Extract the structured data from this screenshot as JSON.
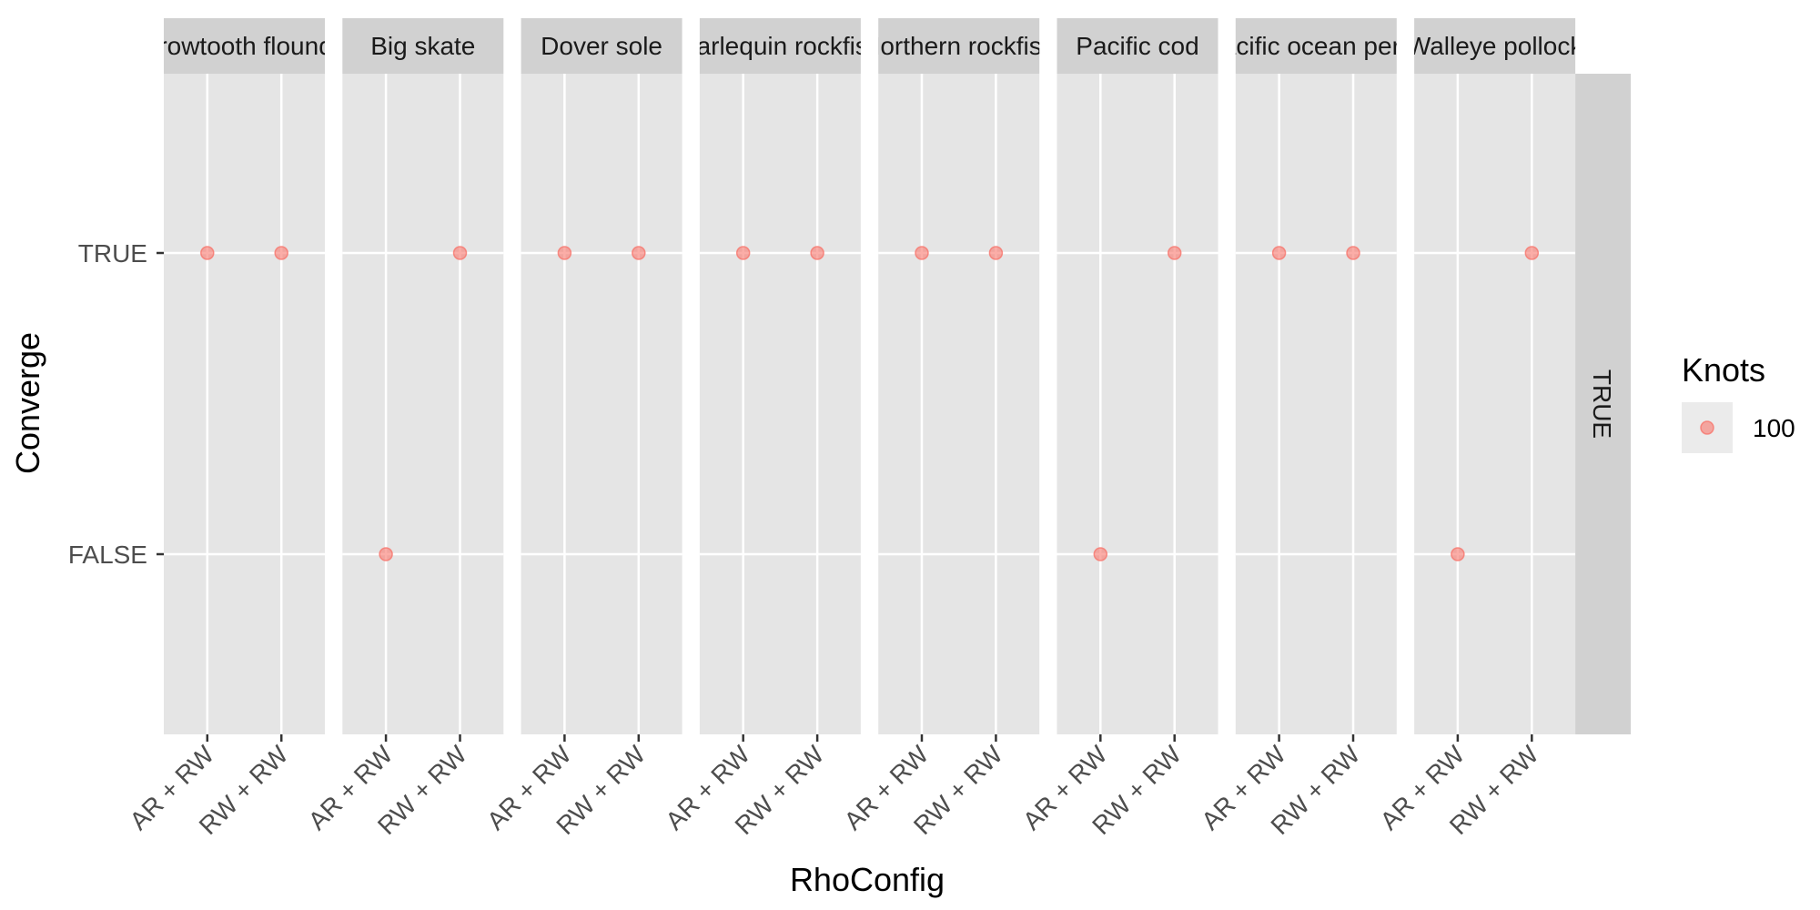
{
  "chart_data": {
    "type": "scatter",
    "xlabel": "RhoConfig",
    "ylabel": "Converge",
    "x_categories": [
      "AR + RW",
      "RW + RW"
    ],
    "y_categories": [
      "FALSE",
      "TRUE"
    ],
    "row_facet_label": "TRUE",
    "facets": [
      {
        "label": "Arrowtooth flounder",
        "points": [
          {
            "x": "AR + RW",
            "y": "TRUE"
          },
          {
            "x": "RW + RW",
            "y": "TRUE"
          }
        ]
      },
      {
        "label": "Big skate",
        "points": [
          {
            "x": "AR + RW",
            "y": "FALSE"
          },
          {
            "x": "RW + RW",
            "y": "TRUE"
          }
        ]
      },
      {
        "label": "Dover sole",
        "points": [
          {
            "x": "AR + RW",
            "y": "TRUE"
          },
          {
            "x": "RW + RW",
            "y": "TRUE"
          }
        ]
      },
      {
        "label": "Harlequin rockfish",
        "points": [
          {
            "x": "AR + RW",
            "y": "TRUE"
          },
          {
            "x": "RW + RW",
            "y": "TRUE"
          }
        ]
      },
      {
        "label": "Northern rockfish",
        "points": [
          {
            "x": "AR + RW",
            "y": "TRUE"
          },
          {
            "x": "RW + RW",
            "y": "TRUE"
          }
        ]
      },
      {
        "label": "Pacific cod",
        "points": [
          {
            "x": "AR + RW",
            "y": "FALSE"
          },
          {
            "x": "RW + RW",
            "y": "TRUE"
          }
        ]
      },
      {
        "label": "Pacific ocean perch",
        "points": [
          {
            "x": "AR + RW",
            "y": "TRUE"
          },
          {
            "x": "RW + RW",
            "y": "TRUE"
          }
        ]
      },
      {
        "label": "Walleye pollock",
        "points": [
          {
            "x": "AR + RW",
            "y": "FALSE"
          },
          {
            "x": "RW + RW",
            "y": "TRUE"
          }
        ]
      }
    ],
    "legend": {
      "title": "Knots",
      "entries": [
        {
          "label": "100",
          "color": "#f8766d"
        }
      ],
      "position": "right"
    },
    "point_color": "#f8766d",
    "point_opacity": 0.6,
    "grid": true
  }
}
